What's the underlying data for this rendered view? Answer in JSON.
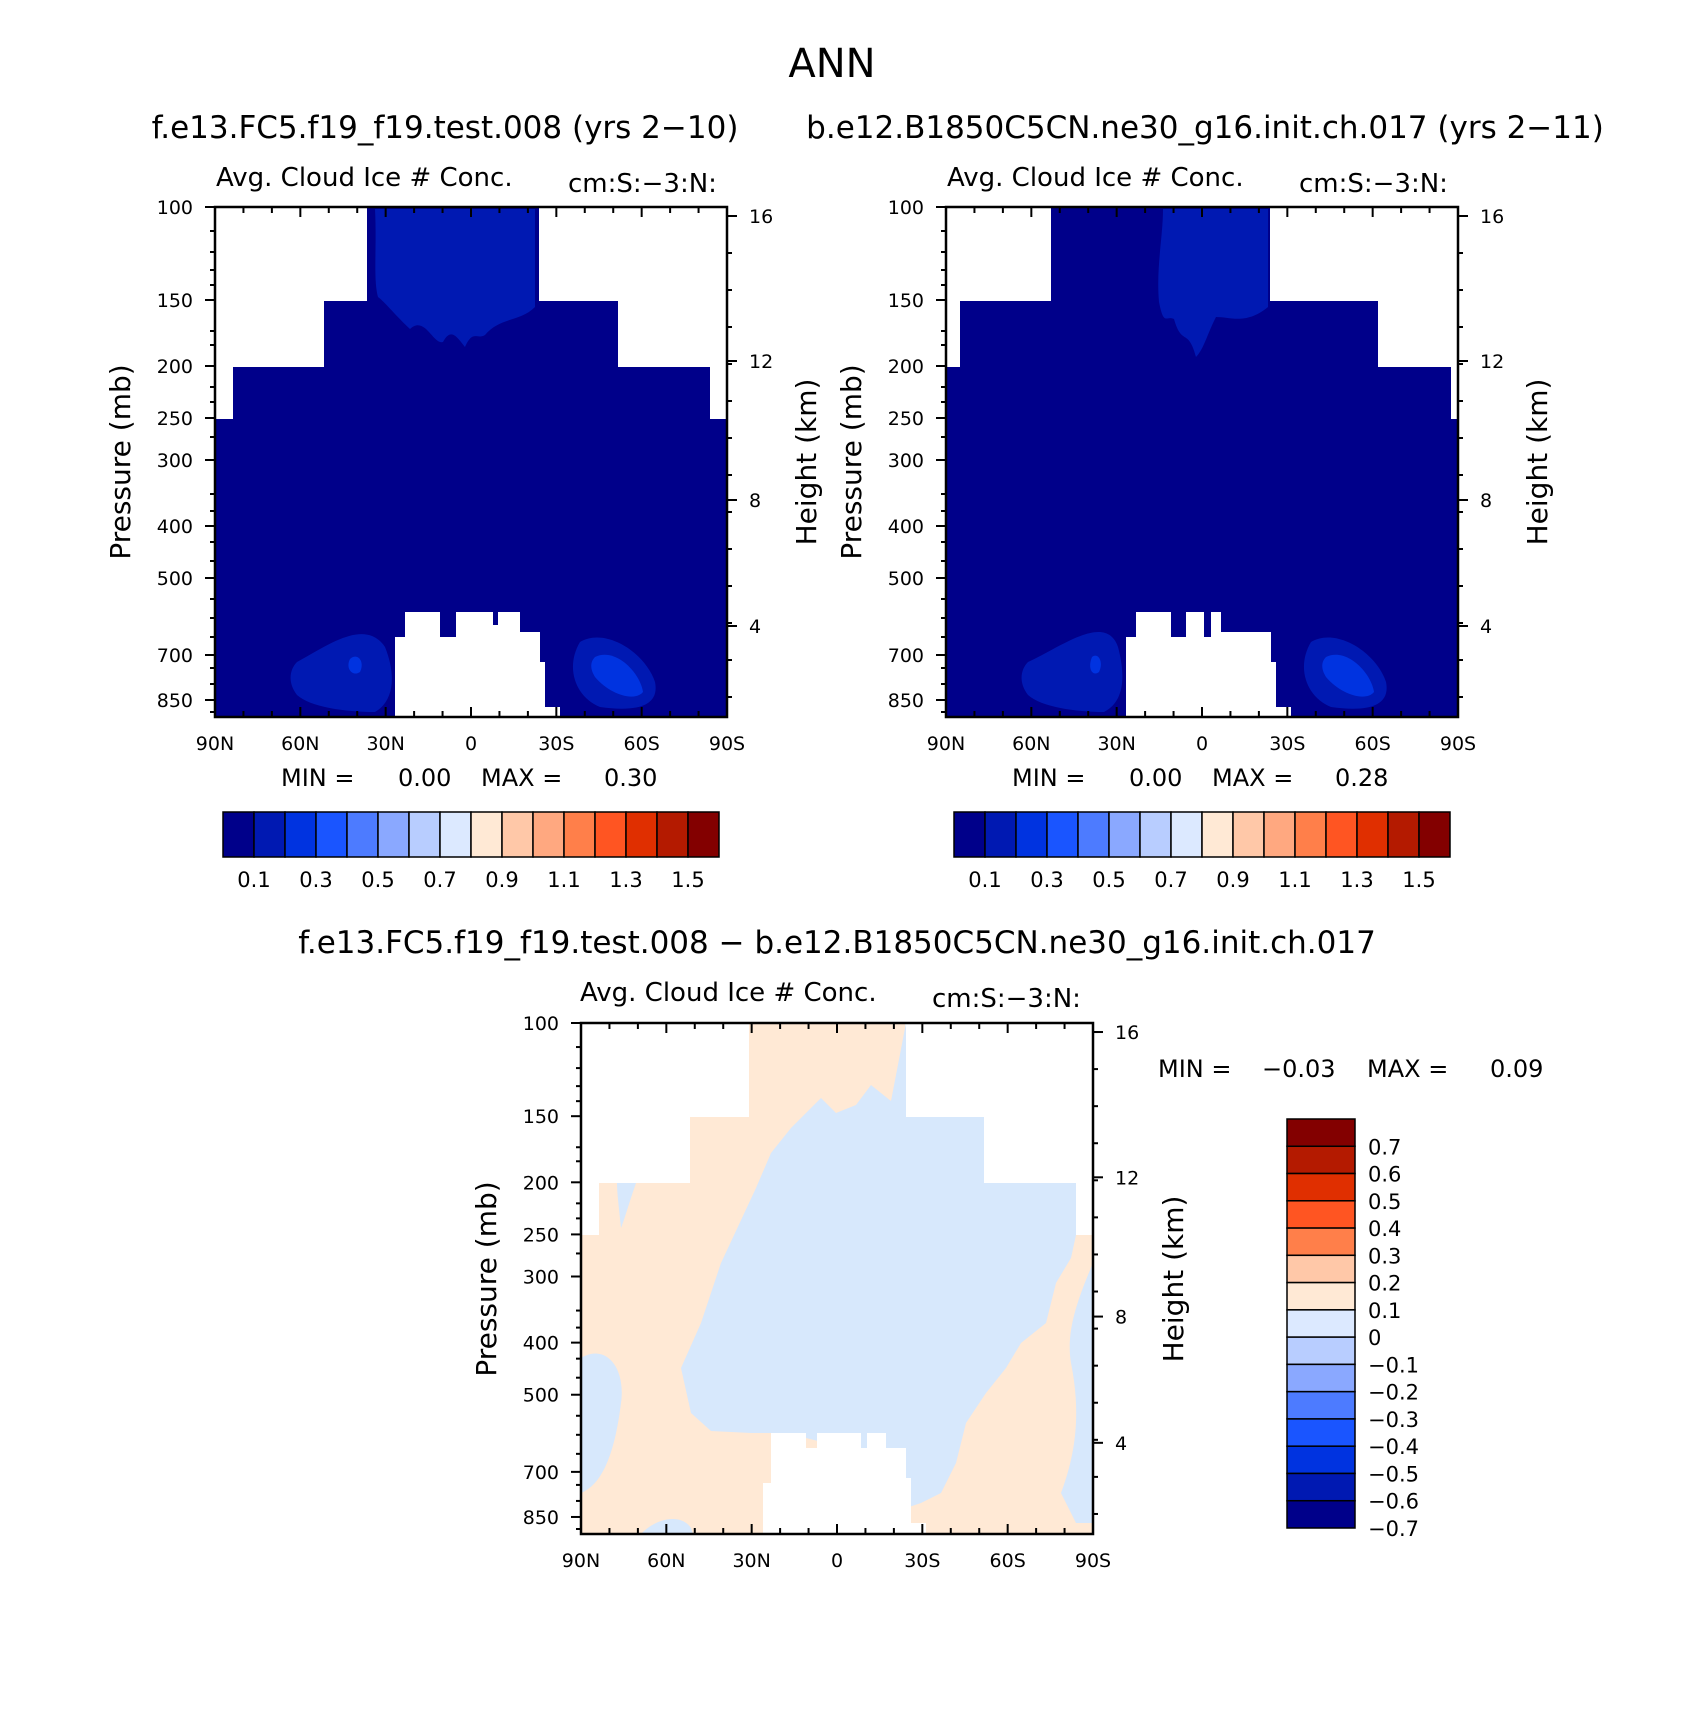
{
  "chart_data": [
    {
      "type": "heatmap",
      "id": "panel-1",
      "title": "ANN",
      "case": "f.e13.FC5.f19_f19.test.008 (yrs 2−10)",
      "var_title": "Avg. Cloud Ice # Conc.",
      "units": "cm:S:−3:N:",
      "xlabel": "",
      "ylabel": "Pressure (mb)",
      "ylabel_right": "Height (km)",
      "xticks": [
        "90N",
        "60N",
        "30N",
        "0",
        "30S",
        "60S",
        "90S"
      ],
      "x_values": [
        90,
        60,
        30,
        0,
        -30,
        -60,
        -90
      ],
      "yticks": [
        "100",
        "150",
        "200",
        "250",
        "300",
        "400",
        "500",
        "700",
        "850"
      ],
      "y_values": [
        100,
        150,
        200,
        250,
        300,
        400,
        500,
        700,
        850
      ],
      "yticks_right": [
        "16",
        "12",
        "8",
        "4"
      ],
      "yticks_right_values": [
        16,
        12,
        8,
        4
      ],
      "ylim": [
        1000,
        100
      ],
      "xlim": [
        90,
        -90
      ],
      "stats": {
        "min_label": "MIN =",
        "min": "0.00",
        "max_label": "MAX =",
        "max": "0.30"
      },
      "colorbar": {
        "labels": [
          "0.1",
          "0.3",
          "0.5",
          "0.7",
          "0.9",
          "1.1",
          "1.3",
          "1.5"
        ],
        "colors": [
          "#00008a",
          "#0019b2",
          "#0033e0",
          "#1a55ff",
          "#4d7bff",
          "#8aa8ff",
          "#b8cdff",
          "#dce9ff",
          "#ffe9d5",
          "#ffc8a8",
          "#ffa880",
          "#ff7f4a",
          "#ff5522",
          "#e02f00",
          "#b41a00",
          "#830000"
        ]
      }
    },
    {
      "type": "heatmap",
      "id": "panel-2",
      "case": "b.e12.B1850C5CN.ne30_g16.init.ch.017 (yrs 2−11)",
      "var_title": "Avg. Cloud Ice # Conc.",
      "units": "cm:S:−3:N:",
      "ylabel": "Pressure (mb)",
      "ylabel_right": "Height (km)",
      "xticks": [
        "90N",
        "60N",
        "30N",
        "0",
        "30S",
        "60S",
        "90S"
      ],
      "yticks": [
        "100",
        "150",
        "200",
        "250",
        "300",
        "400",
        "500",
        "700",
        "850"
      ],
      "yticks_right": [
        "16",
        "12",
        "8",
        "4"
      ],
      "stats": {
        "min_label": "MIN =",
        "min": "0.00",
        "max_label": "MAX =",
        "max": "0.28"
      },
      "colorbar": {
        "labels": [
          "0.1",
          "0.3",
          "0.5",
          "0.7",
          "0.9",
          "1.1",
          "1.3",
          "1.5"
        ],
        "colors": [
          "#00008a",
          "#0019b2",
          "#0033e0",
          "#1a55ff",
          "#4d7bff",
          "#8aa8ff",
          "#b8cdff",
          "#dce9ff",
          "#ffe9d5",
          "#ffc8a8",
          "#ffa880",
          "#ff7f4a",
          "#ff5522",
          "#e02f00",
          "#b41a00",
          "#830000"
        ]
      }
    },
    {
      "type": "heatmap",
      "id": "panel-diff",
      "case": "f.e13.FC5.f19_f19.test.008 − b.e12.B1850C5CN.ne30_g16.init.ch.017",
      "var_title": "Avg. Cloud Ice # Conc.",
      "units": "cm:S:−3:N:",
      "ylabel": "Pressure (mb)",
      "ylabel_right": "Height (km)",
      "xticks": [
        "90N",
        "60N",
        "30N",
        "0",
        "30S",
        "60S",
        "90S"
      ],
      "yticks": [
        "100",
        "150",
        "200",
        "250",
        "300",
        "400",
        "500",
        "700",
        "850"
      ],
      "yticks_right": [
        "16",
        "12",
        "8",
        "4"
      ],
      "stats": {
        "min_label": "MIN =",
        "min": "−0.03",
        "max_label": "MAX =",
        "max": "0.09"
      },
      "colorbar": {
        "labels": [
          "0.7",
          "0.6",
          "0.5",
          "0.4",
          "0.3",
          "0.2",
          "0.1",
          "0",
          "−0.1",
          "−0.2",
          "−0.3",
          "−0.4",
          "−0.5",
          "−0.6",
          "−0.7"
        ],
        "colors": [
          "#830000",
          "#b41a00",
          "#e02f00",
          "#ff5522",
          "#ff7f4a",
          "#ffc8a8",
          "#ffe9d5",
          "#dce9ff",
          "#b8cdff",
          "#8aa8ff",
          "#4d7bff",
          "#1a55ff",
          "#0033e0",
          "#0019b2",
          "#00008a"
        ]
      }
    }
  ],
  "colors": {
    "navy": "#00008a",
    "mid_blue": "#0019b2",
    "bright_blue": "#0033e0",
    "diff_pos": "#ffe9d5",
    "diff_neg": "#d7e8fc"
  }
}
